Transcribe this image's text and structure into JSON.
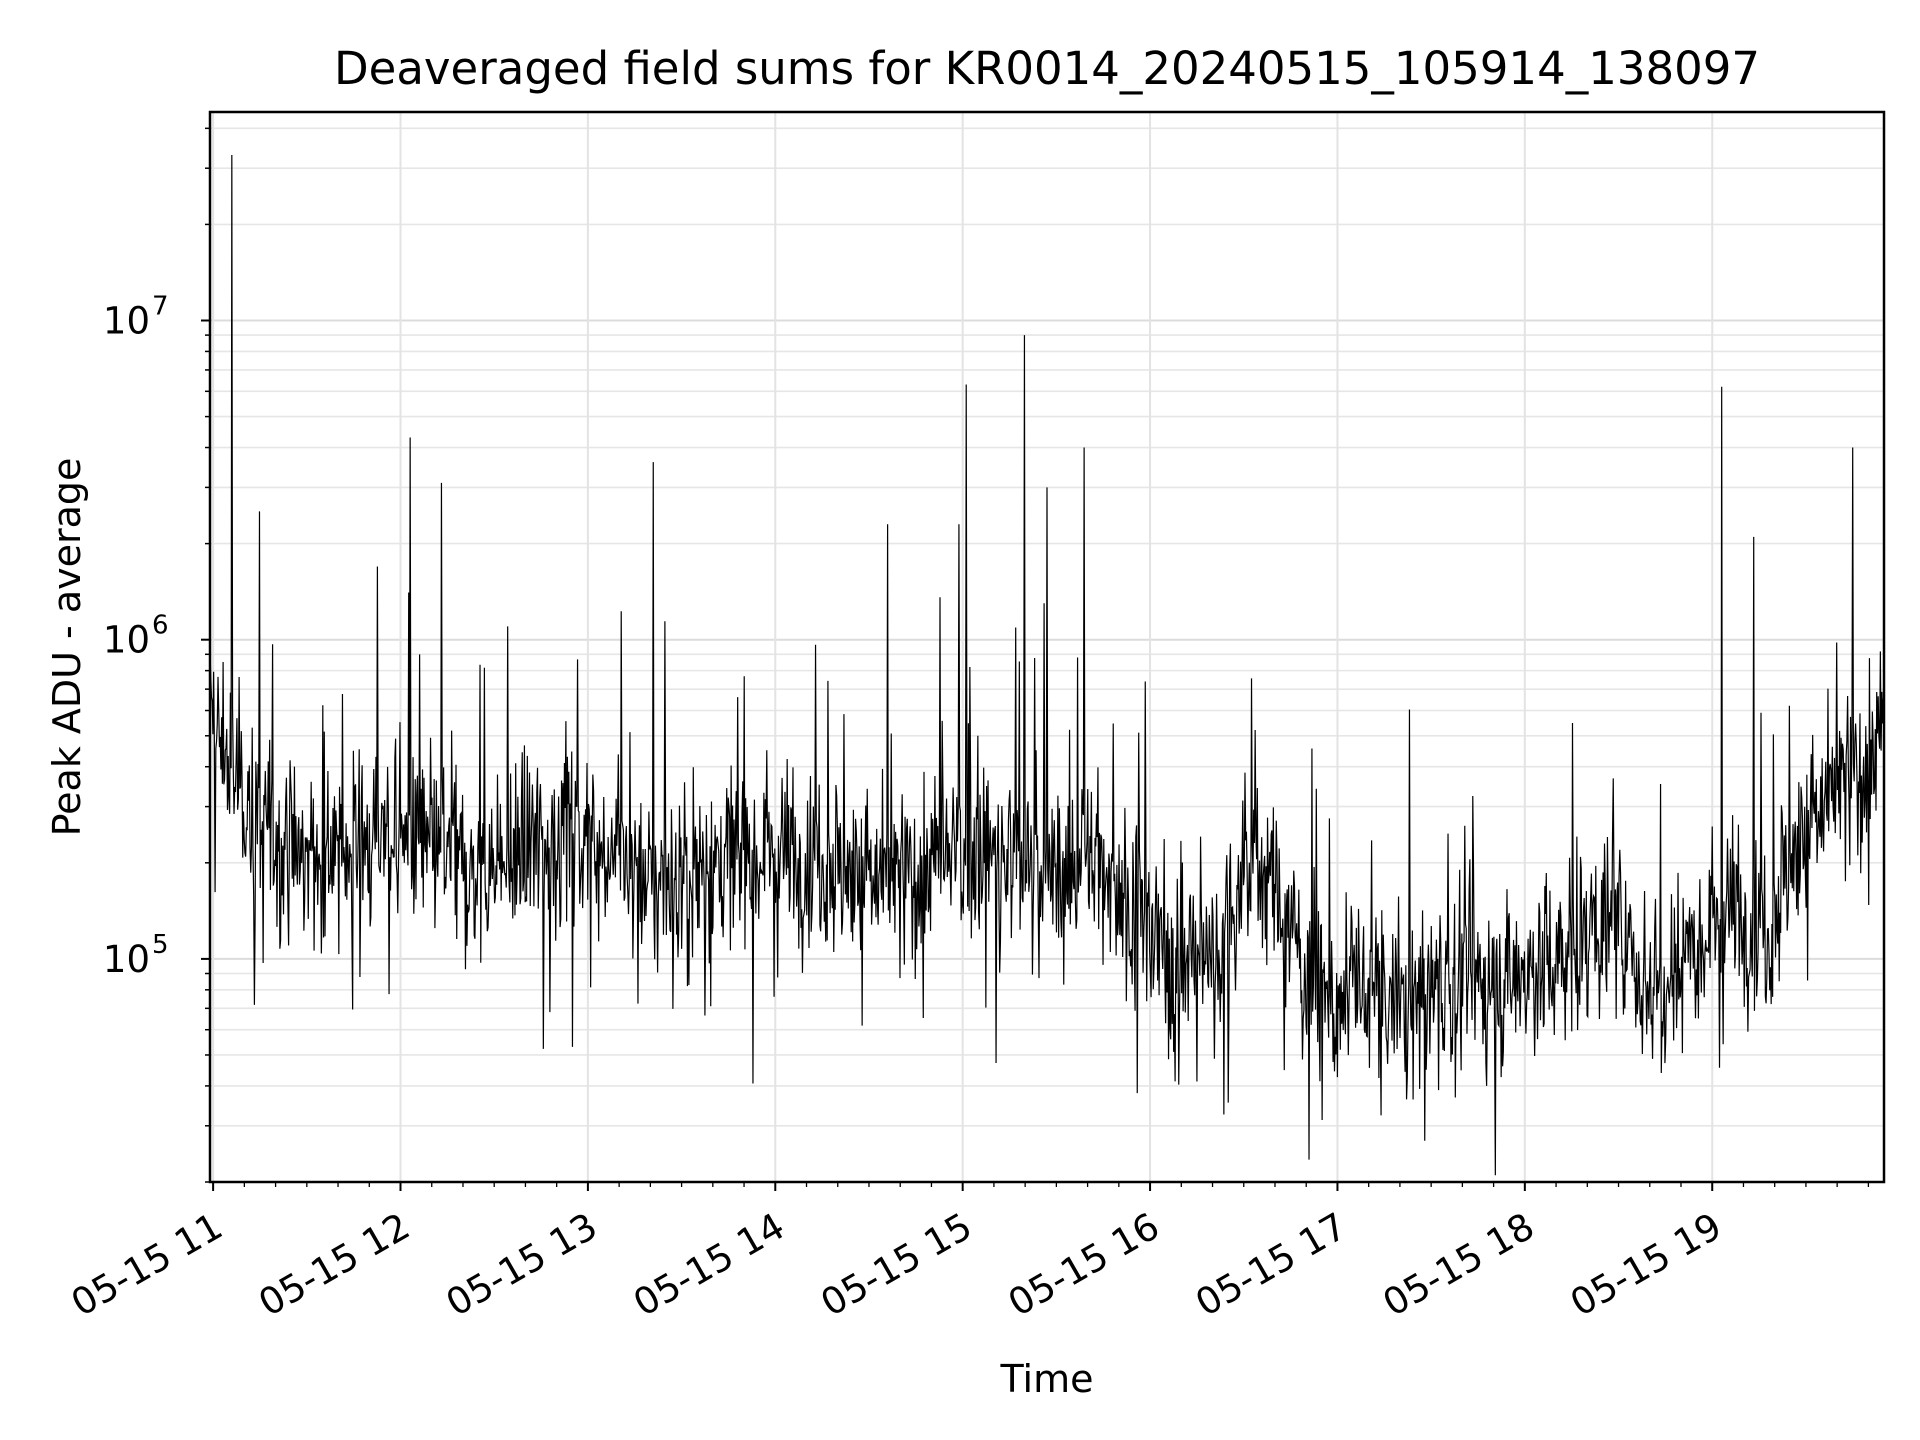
{
  "chart_data": {
    "type": "line",
    "title": "Deaveraged field sums for KR0014_20240515_105914_138097",
    "xlabel": "Time",
    "ylabel": "Peak ADU - average",
    "y_scale": "log",
    "xlim": [
      "2024-05-15 10:59",
      "2024-05-15 19:55"
    ],
    "ylim": [
      20000,
      45000000
    ],
    "x_ticks": [
      "05-15 11",
      "05-15 12",
      "05-15 13",
      "05-15 14",
      "05-15 15",
      "05-15 16",
      "05-15 17",
      "05-15 18",
      "05-15 19"
    ],
    "y_ticks": [
      {
        "base": "10",
        "exp": "5",
        "value": 100000
      },
      {
        "base": "10",
        "exp": "6",
        "value": 1000000
      },
      {
        "base": "10",
        "exp": "7",
        "value": 10000000
      }
    ],
    "grid": true,
    "line_color": "#000000",
    "series": [
      {
        "x_unit": "hours since 2024-05-15 00:00",
        "x": [
          10.983,
          11.02,
          11.1,
          11.2,
          11.3,
          11.4,
          11.5,
          11.6,
          11.7,
          11.8,
          11.9,
          12.0,
          12.1,
          12.2,
          12.3,
          12.4,
          12.5,
          12.6,
          12.7,
          12.8,
          12.9,
          13.0,
          13.1,
          13.2,
          13.3,
          13.4,
          13.5,
          13.6,
          13.7,
          13.8,
          13.9,
          14.0,
          14.1,
          14.2,
          14.3,
          14.4,
          14.5,
          14.6,
          14.7,
          14.8,
          14.9,
          15.0,
          15.1,
          15.2,
          15.3,
          15.4,
          15.5,
          15.6,
          15.7,
          15.8,
          15.9,
          16.0,
          16.1,
          16.2,
          16.3,
          16.4,
          16.5,
          16.6,
          16.7,
          16.8,
          16.9,
          17.0,
          17.1,
          17.2,
          17.3,
          17.4,
          17.5,
          17.6,
          17.7,
          17.8,
          17.9,
          18.0,
          18.1,
          18.2,
          18.3,
          18.4,
          18.5,
          18.6,
          18.7,
          18.8,
          18.9,
          19.0,
          19.1,
          19.2,
          19.3,
          19.4,
          19.5,
          19.6,
          19.7,
          19.8,
          19.92
        ],
        "y": [
          600000,
          500000,
          400000,
          300000,
          250000,
          220000,
          200000,
          210000,
          220000,
          230000,
          240000,
          250000,
          230000,
          220000,
          200000,
          180000,
          190000,
          200000,
          220000,
          250000,
          260000,
          240000,
          220000,
          200000,
          180000,
          170000,
          180000,
          190000,
          200000,
          210000,
          220000,
          230000,
          220000,
          210000,
          200000,
          190000,
          180000,
          170000,
          180000,
          190000,
          200000,
          210000,
          220000,
          210000,
          200000,
          190000,
          180000,
          200000,
          210000,
          180000,
          150000,
          120000,
          100000,
          95000,
          100000,
          120000,
          180000,
          200000,
          150000,
          100000,
          80000,
          70000,
          75000,
          80000,
          70000,
          75000,
          80000,
          85000,
          90000,
          80000,
          85000,
          90000,
          95000,
          100000,
          120000,
          130000,
          120000,
          90000,
          80000,
          100000,
          120000,
          130000,
          150000,
          140000,
          120000,
          200000,
          250000,
          300000,
          350000,
          400000,
          500000
        ]
      }
    ],
    "spikes": [
      {
        "x": 11.1,
        "y": 33000000
      },
      {
        "x": 12.05,
        "y": 4300000
      },
      {
        "x": 12.22,
        "y": 3100000
      },
      {
        "x": 13.35,
        "y": 3600000
      },
      {
        "x": 14.6,
        "y": 2300000
      },
      {
        "x": 14.98,
        "y": 2300000
      },
      {
        "x": 15.02,
        "y": 6300000
      },
      {
        "x": 15.33,
        "y": 9000000
      },
      {
        "x": 15.45,
        "y": 3000000
      },
      {
        "x": 15.65,
        "y": 4000000
      },
      {
        "x": 19.05,
        "y": 6200000
      },
      {
        "x": 19.22,
        "y": 2100000
      },
      {
        "x": 19.75,
        "y": 4000000
      }
    ]
  }
}
